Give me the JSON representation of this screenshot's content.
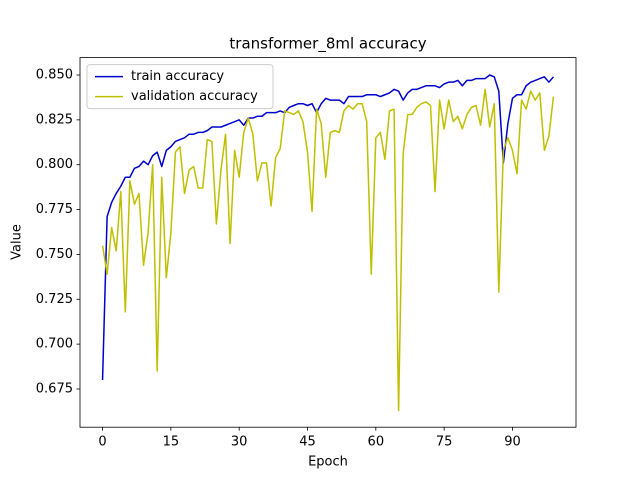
{
  "chart_data": {
    "type": "line",
    "title": "transformer_8ml accuracy",
    "xlabel": "Epoch",
    "ylabel": "Value",
    "x": [
      0,
      1,
      2,
      3,
      4,
      5,
      6,
      7,
      8,
      9,
      10,
      11,
      12,
      13,
      14,
      15,
      16,
      17,
      18,
      19,
      20,
      21,
      22,
      23,
      24,
      25,
      26,
      27,
      28,
      29,
      30,
      31,
      32,
      33,
      34,
      35,
      36,
      37,
      38,
      39,
      40,
      41,
      42,
      43,
      44,
      45,
      46,
      47,
      48,
      49,
      50,
      51,
      52,
      53,
      54,
      55,
      56,
      57,
      58,
      59,
      60,
      61,
      62,
      63,
      64,
      65,
      66,
      67,
      68,
      69,
      70,
      71,
      72,
      73,
      74,
      75,
      76,
      77,
      78,
      79,
      80,
      81,
      82,
      83,
      84,
      85,
      86,
      87,
      88,
      89,
      90,
      91,
      92,
      93,
      94,
      95,
      96,
      97,
      98,
      99
    ],
    "series": [
      {
        "name": "train accuracy",
        "color": "#0000cc",
        "values": [
          0.68,
          0.771,
          0.779,
          0.784,
          0.788,
          0.793,
          0.793,
          0.798,
          0.799,
          0.802,
          0.8,
          0.805,
          0.807,
          0.799,
          0.808,
          0.81,
          0.813,
          0.814,
          0.815,
          0.817,
          0.817,
          0.818,
          0.818,
          0.819,
          0.821,
          0.821,
          0.821,
          0.822,
          0.823,
          0.824,
          0.825,
          0.822,
          0.826,
          0.826,
          0.827,
          0.827,
          0.829,
          0.829,
          0.829,
          0.83,
          0.829,
          0.832,
          0.833,
          0.834,
          0.834,
          0.833,
          0.834,
          0.829,
          0.834,
          0.837,
          0.836,
          0.836,
          0.836,
          0.834,
          0.838,
          0.838,
          0.838,
          0.838,
          0.839,
          0.839,
          0.839,
          0.838,
          0.839,
          0.84,
          0.842,
          0.841,
          0.836,
          0.84,
          0.842,
          0.842,
          0.843,
          0.844,
          0.844,
          0.844,
          0.843,
          0.845,
          0.846,
          0.846,
          0.847,
          0.844,
          0.847,
          0.847,
          0.848,
          0.848,
          0.848,
          0.85,
          0.849,
          0.841,
          0.801,
          0.823,
          0.837,
          0.839,
          0.839,
          0.844,
          0.846,
          0.847,
          0.848,
          0.849,
          0.846,
          0.849
        ]
      },
      {
        "name": "validation accuracy",
        "color": "#bfbf00",
        "values": [
          0.755,
          0.739,
          0.765,
          0.752,
          0.785,
          0.718,
          0.791,
          0.778,
          0.784,
          0.744,
          0.762,
          0.8,
          0.685,
          0.793,
          0.737,
          0.762,
          0.807,
          0.81,
          0.784,
          0.797,
          0.799,
          0.787,
          0.787,
          0.814,
          0.813,
          0.767,
          0.797,
          0.817,
          0.756,
          0.808,
          0.793,
          0.818,
          0.826,
          0.817,
          0.791,
          0.801,
          0.801,
          0.777,
          0.804,
          0.809,
          0.83,
          0.829,
          0.828,
          0.83,
          0.824,
          0.807,
          0.774,
          0.831,
          0.823,
          0.793,
          0.818,
          0.819,
          0.818,
          0.83,
          0.833,
          0.831,
          0.834,
          0.834,
          0.824,
          0.739,
          0.815,
          0.818,
          0.803,
          0.83,
          0.831,
          0.663,
          0.806,
          0.828,
          0.828,
          0.832,
          0.834,
          0.835,
          0.833,
          0.785,
          0.836,
          0.82,
          0.836,
          0.824,
          0.827,
          0.82,
          0.828,
          0.832,
          0.833,
          0.822,
          0.842,
          0.821,
          0.834,
          0.729,
          0.808,
          0.815,
          0.808,
          0.795,
          0.836,
          0.831,
          0.841,
          0.836,
          0.84,
          0.808,
          0.816,
          0.838
        ]
      }
    ],
    "xlim": [
      -4.95,
      103.95
    ],
    "ylim": [
      0.6537,
      0.8597
    ],
    "xticks": [
      0,
      15,
      30,
      45,
      60,
      75,
      90
    ],
    "yticks": [
      0.675,
      {
        "value": 0.7,
        "label": "0.700"
      },
      0.725,
      {
        "value": 0.75,
        "label": "0.750"
      },
      0.775,
      {
        "value": 0.8,
        "label": "0.800"
      },
      0.825,
      {
        "value": 0.85,
        "label": "0.850"
      }
    ],
    "legend": "upper left"
  }
}
